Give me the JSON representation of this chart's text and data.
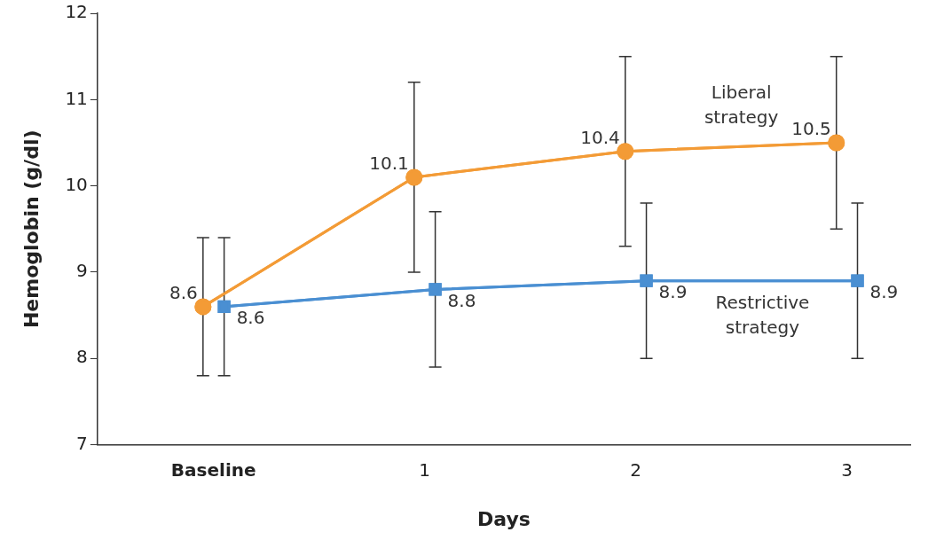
{
  "chart_data": {
    "type": "line",
    "xlabel": "Days",
    "ylabel": "Hemoglobin (g/dl)",
    "categories": [
      "Baseline",
      "1",
      "2",
      "3"
    ],
    "ylim": [
      7,
      12
    ],
    "yticks": [
      7,
      8,
      9,
      10,
      11,
      12
    ],
    "grid": false,
    "legend": false,
    "data_labels": true,
    "line_style": "solid",
    "series": [
      {
        "name": "Liberal strategy",
        "color": "#f39b36",
        "marker": "circle",
        "values": [
          8.6,
          10.1,
          10.4,
          10.5
        ],
        "errors": [
          [
            7.8,
            9.4
          ],
          [
            9.0,
            11.2
          ],
          [
            9.3,
            11.5
          ],
          [
            9.5,
            11.5
          ]
        ]
      },
      {
        "name": "Restrictive strategy",
        "color": "#4a8fd2",
        "marker": "square",
        "values": [
          8.6,
          8.8,
          8.9,
          8.9
        ],
        "errors": [
          [
            7.8,
            9.4
          ],
          [
            7.9,
            9.7
          ],
          [
            8.0,
            9.8
          ],
          [
            8.0,
            9.8
          ]
        ]
      }
    ]
  }
}
